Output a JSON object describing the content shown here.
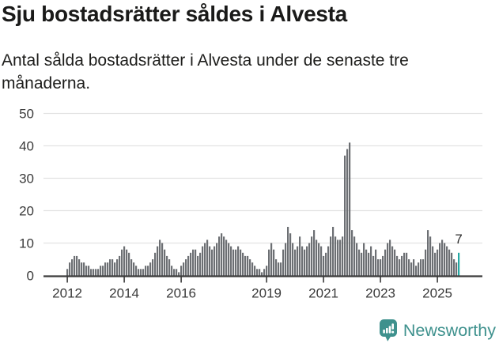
{
  "page": {
    "title": "Sju bostadsrätter såldes i Alvesta",
    "subtitle": "Antal sålda bostadsrätter i Alvesta under de senaste tre månaderna."
  },
  "chart_data": {
    "type": "bar",
    "title": "Antal sålda bostadsrätter i Alvesta under de senaste tre månaderna.",
    "xlabel": "",
    "ylabel": "",
    "ylim": [
      0,
      50
    ],
    "y_ticks": [
      0,
      10,
      20,
      30,
      40,
      50
    ],
    "grid": true,
    "legend": false,
    "frequency": "monthly",
    "x_start_year": 2012,
    "x_tick_years": [
      2012,
      2014,
      2016,
      2019,
      2021,
      2023,
      2025
    ],
    "x_tick_labels": [
      "2012",
      "2014",
      "2016",
      "2019",
      "2021",
      "2023",
      "2025"
    ],
    "bar_color": "#6c6f73",
    "axis_color": "#3b3b3b",
    "gridline_color": "#e2e2e2",
    "values": [
      2,
      4,
      5,
      6,
      6,
      5,
      4,
      4,
      3,
      3,
      2,
      2,
      2,
      2,
      3,
      3,
      4,
      4,
      5,
      5,
      4,
      5,
      6,
      8,
      9,
      8,
      7,
      5,
      4,
      3,
      2,
      2,
      2,
      3,
      3,
      4,
      5,
      7,
      9,
      11,
      10,
      8,
      6,
      5,
      3,
      2,
      2,
      1,
      3,
      4,
      5,
      6,
      7,
      8,
      8,
      6,
      7,
      9,
      10,
      11,
      9,
      8,
      9,
      10,
      12,
      13,
      12,
      11,
      10,
      9,
      8,
      8,
      9,
      8,
      7,
      6,
      6,
      5,
      4,
      3,
      2,
      2,
      1,
      2,
      3,
      8,
      10,
      8,
      5,
      4,
      4,
      8,
      10,
      15,
      13,
      10,
      8,
      9,
      12,
      9,
      8,
      9,
      10,
      12,
      14,
      11,
      10,
      9,
      6,
      7,
      9,
      12,
      15,
      12,
      11,
      11,
      12,
      37,
      39,
      41,
      14,
      12,
      10,
      8,
      7,
      10,
      8,
      7,
      9,
      6,
      8,
      5,
      5,
      6,
      8,
      10,
      11,
      9,
      8,
      6,
      5,
      6,
      7,
      7,
      5,
      4,
      5,
      3,
      4,
      5,
      5,
      8,
      14,
      12,
      9,
      7,
      8,
      10,
      11,
      10,
      9,
      8,
      7,
      5,
      4,
      7
    ],
    "highlight": {
      "index": 165,
      "value": 7,
      "label": "7",
      "color": "#23a7a2"
    }
  },
  "footer": {
    "brand": "Newsworthy",
    "brand_color": "#3e918d"
  }
}
